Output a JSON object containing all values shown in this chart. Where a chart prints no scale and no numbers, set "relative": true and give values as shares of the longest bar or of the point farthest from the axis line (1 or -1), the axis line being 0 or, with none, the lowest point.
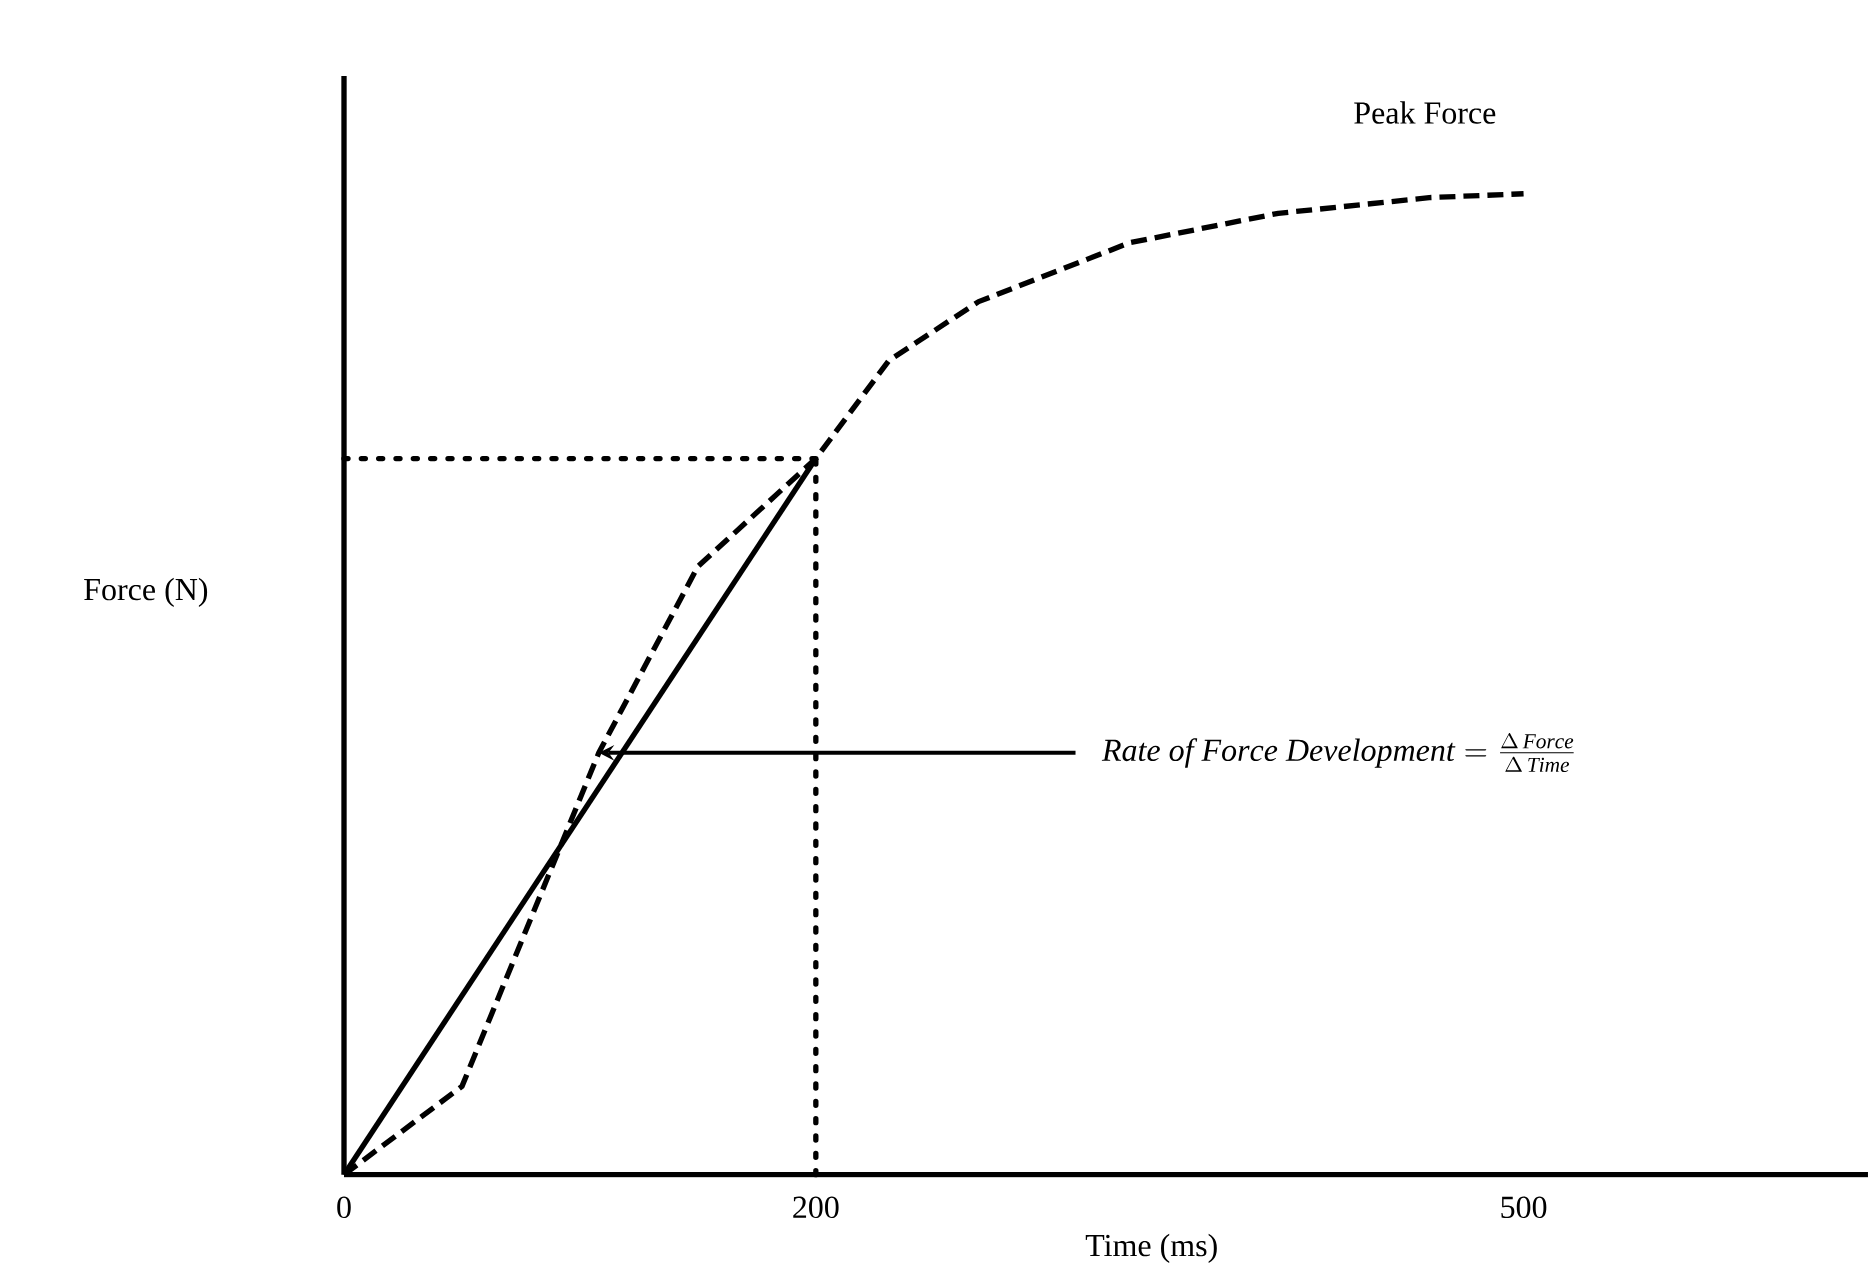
{
  "chart_data": {
    "type": "line",
    "relative": true,
    "xlabel": "Time (ms)",
    "ylabel": "Force (N)",
    "xlim": [
      0,
      646
    ],
    "xticks": [
      0,
      200,
      500
    ],
    "tick_labels": "x",
    "marker": "none",
    "series": [
      {
        "color": "#000000",
        "line_style": "dashed",
        "x": [
          0,
          50,
          108,
          150,
          200,
          231,
          269,
          333,
          396,
          460,
          500
        ],
        "values": [
          0,
          0.09,
          0.43,
          0.62,
          0.73,
          0.83,
          0.89,
          0.95,
          0.98,
          0.996,
          1
        ]
      },
      {
        "color": "#000000",
        "line_style": "solid",
        "x": [
          0,
          200
        ],
        "values": [
          0,
          0.73
        ]
      }
    ],
    "ref_lines": [
      {
        "axis": "y",
        "value": 0.73,
        "line_style": "dotted"
      },
      {
        "axis": "x",
        "value": 200,
        "line_style": "dotted"
      }
    ],
    "annotations": [
      {
        "text": "Peak Force",
        "x": 500,
        "y": 1
      },
      {
        "text": "\\mathit{Rate\\ of\\ Force\\ Development} = \\frac{\\Delta\\,\\mathit{Force}}{\\Delta\\,\\mathit{Time}}",
        "x": 108,
        "y": 0.43
      }
    ]
  }
}
